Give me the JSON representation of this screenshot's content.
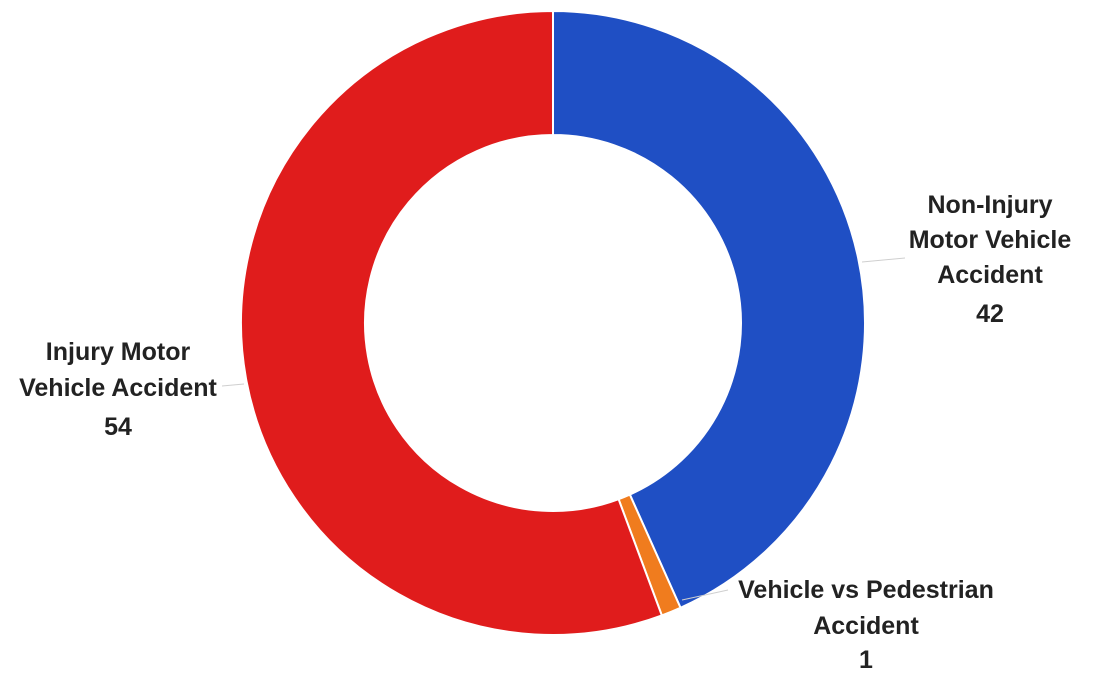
{
  "chart_data": {
    "type": "pie",
    "style": "donut",
    "title": "",
    "legend": "none",
    "categories": [
      "Non-Injury Motor Vehicle Accident",
      "Vehicle vs Pedestrian Accident",
      "Injury Motor Vehicle Accident"
    ],
    "values": [
      42,
      1,
      54
    ],
    "colors": [
      "#1f4fc4",
      "#f07c1e",
      "#e01c1c"
    ],
    "data_labels": [
      {
        "lines": [
          "Non-Injury",
          "Motor Vehicle",
          "Accident"
        ],
        "value": "42"
      },
      {
        "lines": [
          "Vehicle vs Pedestrian",
          "Accident"
        ],
        "value": "1"
      },
      {
        "lines": [
          "Injury Motor",
          "Vehicle Accident"
        ],
        "value": "54"
      }
    ]
  }
}
